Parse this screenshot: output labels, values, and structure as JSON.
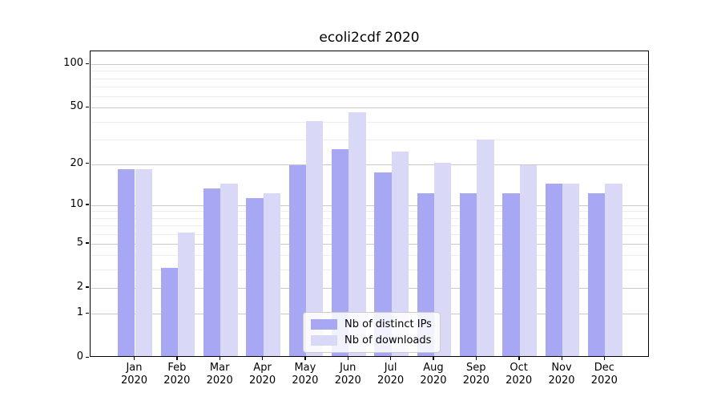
{
  "chart_data": {
    "type": "bar",
    "title": "ecoli2cdf 2020",
    "categories": [
      "Jan 2020",
      "Feb 2020",
      "Mar 2020",
      "Apr 2020",
      "May 2020",
      "Jun 2020",
      "Jul 2020",
      "Aug 2020",
      "Sep 2020",
      "Oct 2020",
      "Nov 2020",
      "Dec 2020"
    ],
    "months": [
      "Jan",
      "Feb",
      "Mar",
      "Apr",
      "May",
      "Jun",
      "Jul",
      "Aug",
      "Sep",
      "Oct",
      "Nov",
      "Dec"
    ],
    "year": "2020",
    "series": [
      {
        "name": "Nb of distinct IPs",
        "color": "#a7a7f3",
        "values": [
          18,
          3,
          13,
          11,
          19,
          25,
          17,
          12,
          12,
          12,
          14,
          12
        ]
      },
      {
        "name": "Nb of downloads",
        "color": "#d9d9f7",
        "values": [
          18,
          6,
          14,
          12,
          39,
          45,
          24,
          20,
          29,
          19,
          14,
          14
        ]
      }
    ],
    "y_scale": "log1p",
    "y_ticks": [
      100,
      50,
      20,
      10,
      5,
      2,
      1,
      0
    ],
    "y_minor_gridlines": [
      3,
      4,
      6,
      7,
      8,
      9,
      30,
      40,
      60,
      70,
      80,
      90
    ],
    "ylim": [
      0,
      122
    ],
    "xlabel": "",
    "ylabel": "",
    "grid": true,
    "legend_position": "lower center",
    "colors": {
      "axis": "#000000",
      "grid_major": "#c9c9c9",
      "grid_minor": "#ededed",
      "background": "#ffffff"
    }
  }
}
